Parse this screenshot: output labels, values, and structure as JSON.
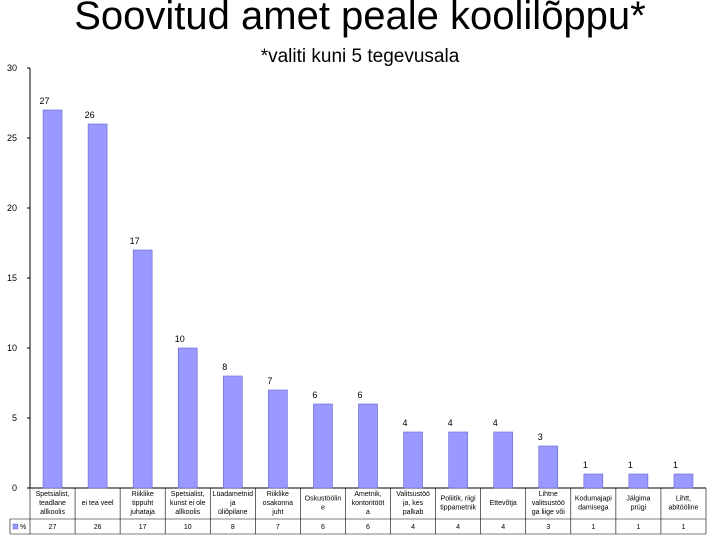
{
  "title": "Soovitud amet peale koolilõppu*",
  "subtitle": "*valiti kuni 5 tegevusala",
  "chart_data": {
    "type": "bar",
    "ylim": [
      0,
      30
    ],
    "yticks": [
      0,
      5,
      10,
      15,
      20,
      25,
      30
    ],
    "grid": false,
    "bar_color": "#9999ff",
    "categories": [
      [
        "Spetsialist,",
        "teadlane",
        "allkoolis"
      ],
      [
        "ei tea veel"
      ],
      [
        "Riiklike",
        "tippuht",
        "juhataja"
      ],
      [
        "Spetsialist,",
        "kunst ei ole",
        "allkoolis"
      ],
      [
        "Lüadametnid",
        "ja",
        "üliõpilane"
      ],
      [
        "Riiklike",
        "osakonna",
        "juht"
      ],
      [
        "Oskustöölin",
        "e"
      ],
      [
        "Ametnik,",
        "kontoritööt",
        "a"
      ],
      [
        "Valitsustöö",
        "ja, kes",
        "palkab"
      ],
      [
        "Poliitik, riigi",
        "tippametnik"
      ],
      [
        "Ettevõtja"
      ],
      [
        "Lihtne",
        "valitsustöö",
        "ga liige või"
      ],
      [
        "Kodumajapi",
        "damisega"
      ],
      [
        "Jälgima",
        "prügi"
      ],
      [
        "Lihtt,",
        "abitööline"
      ]
    ],
    "values": [
      27,
      26,
      17,
      10,
      8,
      7,
      6,
      6,
      4,
      4,
      4,
      3,
      1,
      1,
      1
    ],
    "table_row_label": "%"
  }
}
